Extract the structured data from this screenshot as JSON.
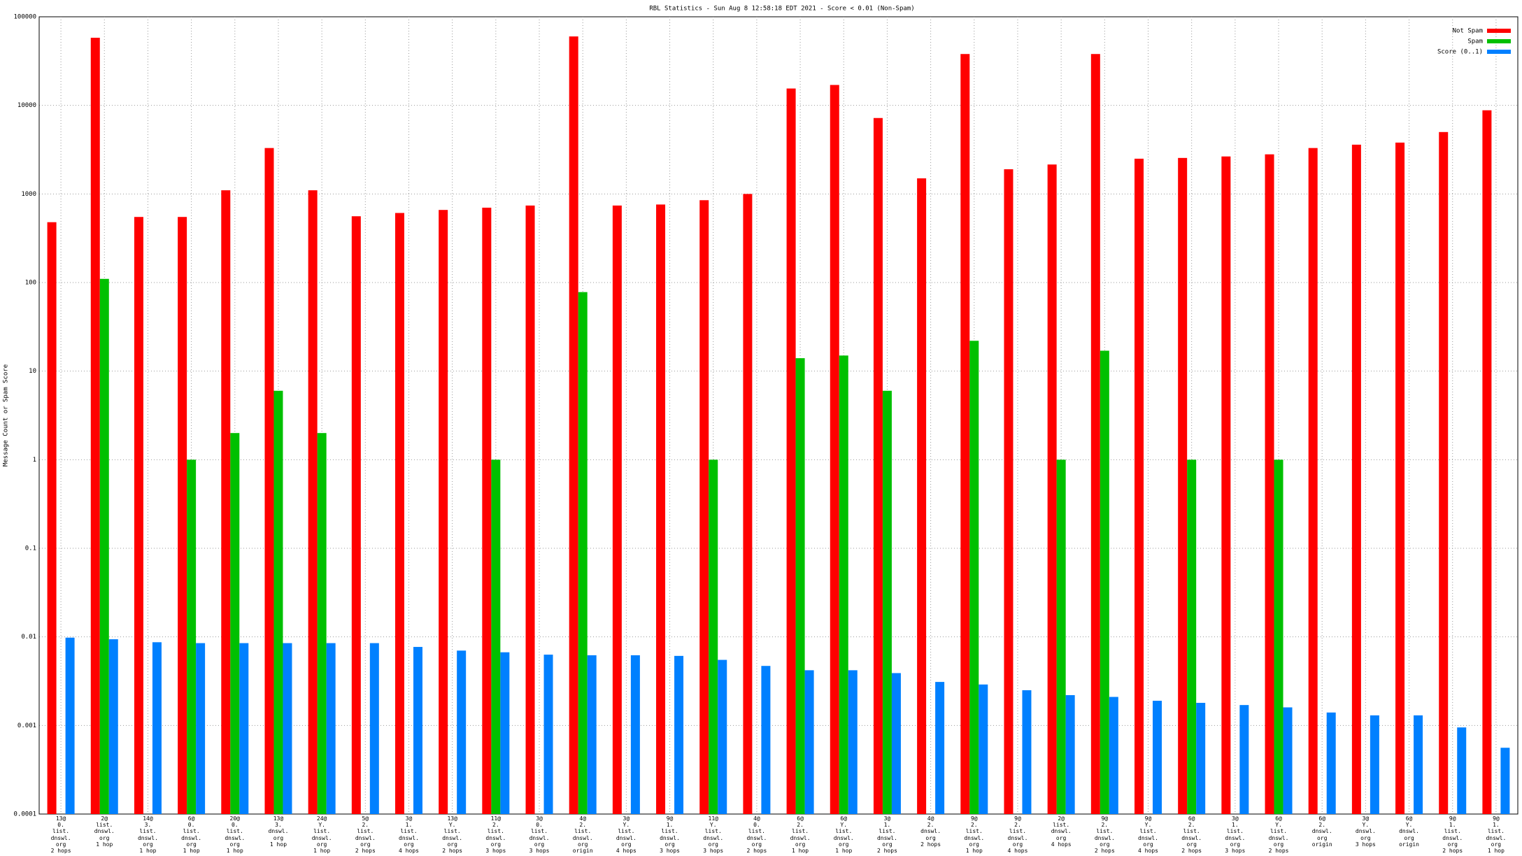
{
  "chart_data": {
    "type": "bar",
    "title": "RBL Statistics - Sun Aug  8 12:58:18 EDT 2021 - Score < 0.01 (Non-Spam)",
    "y_label": "Message Count or Spam Score",
    "log_scale": true,
    "grid": true,
    "legend_position": "top-right",
    "ylim": [
      0.0001,
      100000
    ],
    "yticks": [
      0.0001,
      0.001,
      0.01,
      0.1,
      1,
      10,
      100,
      1000,
      10000,
      100000
    ],
    "categories": [
      "13@\n0.\nlist.\ndnswl.\norg\n2 hops",
      "2@\nlist.\ndnswl.\norg\n1 hop",
      "14@\n3.\nlist.\ndnswl.\norg\n1 hop",
      "6@\n0.\nlist.\ndnswl.\norg\n1 hop",
      "20@\n0.\nlist.\ndnswl.\norg\n1 hop",
      "13@\n3.\ndnswl.\norg\n1 hop",
      "24@\nY.\nlist.\ndnswl.\norg\n1 hop",
      "5@\n2.\nlist.\ndnswl.\norg\n2 hops",
      "3@\n1.\nlist.\ndnswl.\norg\n4 hops",
      "13@\nY.\nlist.\ndnswl.\norg\n2 hops",
      "11@\n2.\nlist.\ndnswl.\norg\n3 hops",
      "3@\n0.\nlist.\ndnswl.\norg\n3 hops",
      "4@\n2.\nlist.\ndnswl.\norg\norigin",
      "3@\nY.\nlist.\ndnswl.\norg\n4 hops",
      "9@\n1.\nlist.\ndnswl.\norg\n3 hops",
      "11@\nY.\nlist.\ndnswl.\norg\n3 hops",
      "4@\n0.\nlist.\ndnswl.\norg\n2 hops",
      "6@\n2.\nlist.\ndnswl.\norg\n1 hop",
      "6@\nY.\nlist.\ndnswl.\norg\n1 hop",
      "3@\n1.\nlist.\ndnswl.\norg\n2 hops",
      "4@\n2.\ndnswl.\norg\n2 hops",
      "9@\n2.\nlist.\ndnswl.\norg\n1 hop",
      "9@\n2.\nlist.\ndnswl.\norg\n4 hops",
      "2@\nlist.\ndnswl.\norg\n4 hops",
      "9@\n2.\nlist.\ndnswl.\norg\n2 hops",
      "9@\nY.\nlist.\ndnswl.\norg\n4 hops",
      "6@\n2.\nlist.\ndnswl.\norg\n2 hops",
      "3@\n1.\nlist.\ndnswl.\norg\n3 hops",
      "6@\nY.\nlist.\ndnswl.\norg\n2 hops",
      "6@\n2.\ndnswl.\norg\norigin",
      "3@\nY.\ndnswl.\norg\n3 hops",
      "6@\nY.\ndnswl.\norg\norigin",
      "9@\n1.\nlist.\ndnswl.\norg\n2 hops",
      "9@\n1.\nlist.\ndnswl.\norg\n1 hop"
    ],
    "series": [
      {
        "name": "Not Spam",
        "color": "#ff0000",
        "values": [
          480,
          58000,
          550,
          550,
          1100,
          3300,
          1100,
          560,
          610,
          660,
          700,
          740,
          60000,
          740,
          760,
          850,
          1000,
          15500,
          17000,
          7200,
          1500,
          38000,
          1900,
          2150,
          38000,
          2500,
          2550,
          2650,
          2800,
          3300,
          3600,
          3800,
          5000,
          8800
        ]
      },
      {
        "name": "Spam",
        "color": "#00c000",
        "values": [
          null,
          110,
          null,
          1,
          2,
          6,
          2,
          null,
          null,
          null,
          1,
          null,
          78,
          null,
          null,
          1,
          null,
          14,
          15,
          6,
          null,
          22,
          null,
          1,
          17,
          null,
          1,
          null,
          1,
          null,
          null,
          null,
          null,
          null
        ]
      },
      {
        "name": "Score (0..1)",
        "color": "#0080ff",
        "values": [
          0.0098,
          0.0094,
          0.0087,
          0.0085,
          0.0085,
          0.0085,
          0.0085,
          0.0085,
          0.0077,
          0.007,
          0.0067,
          0.0063,
          0.0062,
          0.0062,
          0.0061,
          0.0055,
          0.0047,
          0.0042,
          0.0042,
          0.0039,
          0.0031,
          0.0029,
          0.0025,
          0.0022,
          0.0021,
          0.0019,
          0.0018,
          0.0017,
          0.0016,
          0.0014,
          0.0013,
          0.0013,
          0.00095,
          0.00056
        ]
      }
    ]
  }
}
